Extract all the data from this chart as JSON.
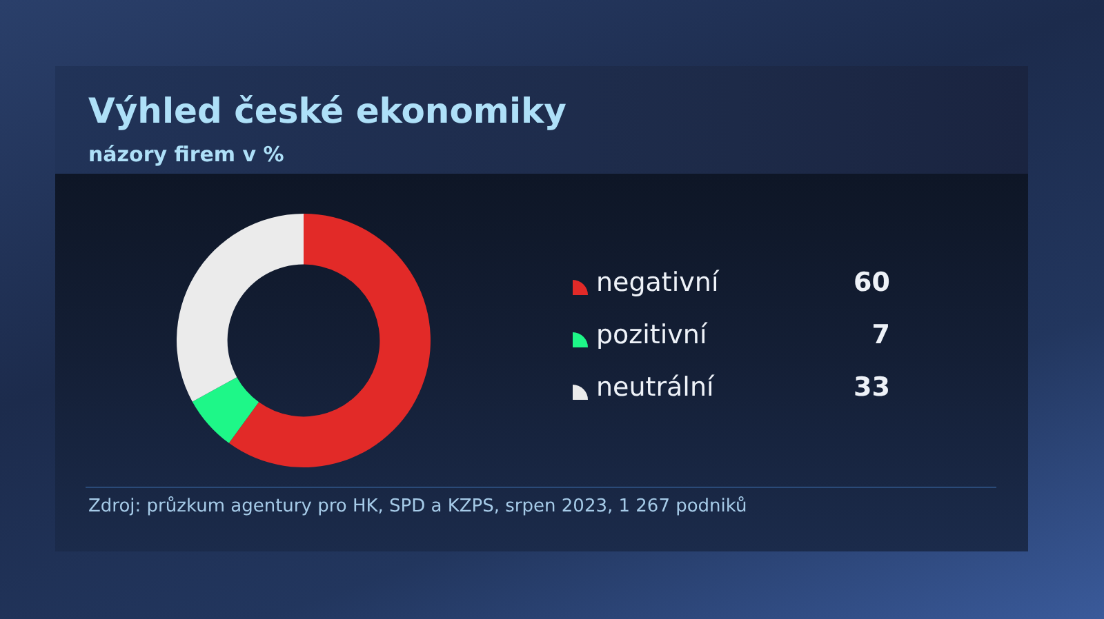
{
  "chart_data": {
    "type": "donut",
    "title": "Výhled české ekonomiky",
    "subtitle": "názory firem v %",
    "categories": [
      "negativní",
      "pozitivní",
      "neutrální"
    ],
    "values": [
      60,
      7,
      33
    ],
    "colors": [
      "#e22a28",
      "#1ef788",
      "#ebebeb"
    ],
    "legend": "right",
    "data_labels": true,
    "annotations": [
      "Zdroj: průzkum agentury pro HK, SPD a KZPS, srpen 2023, 1 267 podniků"
    ]
  }
}
